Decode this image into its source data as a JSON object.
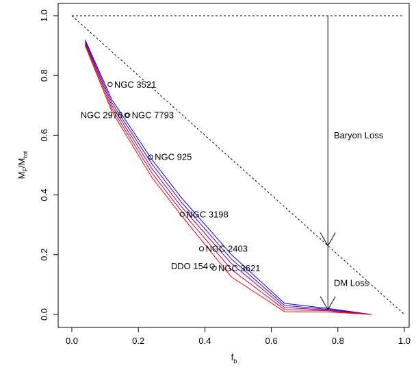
{
  "chart_data": {
    "type": "line",
    "xlabel": {
      "main": "f",
      "sub": "b"
    },
    "ylabel": {
      "main": "M",
      "sub1": "F",
      "sep": "/M",
      "sub2": "tot"
    },
    "xlim": [
      0.0,
      1.0
    ],
    "ylim": [
      0.0,
      1.0
    ],
    "x_ticks": [
      0.0,
      0.2,
      0.4,
      0.6,
      0.8,
      1.0
    ],
    "y_ticks": [
      0.0,
      0.2,
      0.4,
      0.6,
      0.8,
      1.0
    ],
    "x_tick_labels": [
      "0.0",
      "0.2",
      "0.4",
      "0.6",
      "0.8",
      "1.0"
    ],
    "y_tick_labels": [
      "0.0",
      "0.2",
      "0.4",
      "0.6",
      "0.8",
      "1.0"
    ],
    "grid": false,
    "reference_lines": [
      {
        "style": "dashed",
        "x": [
          0.0,
          1.0
        ],
        "y": [
          1.0,
          1.0
        ]
      },
      {
        "style": "dashed",
        "x": [
          0.0,
          1.0
        ],
        "y": [
          1.0,
          0.0
        ]
      }
    ],
    "series": [
      {
        "color": "#0000ff",
        "x": [
          0.04,
          0.12,
          0.24,
          0.33,
          0.48,
          0.64,
          0.77,
          0.9
        ],
        "y": [
          0.92,
          0.72,
          0.52,
          0.39,
          0.2,
          0.037,
          0.02,
          0.0
        ]
      },
      {
        "color": "#3f00c0",
        "x": [
          0.04,
          0.12,
          0.24,
          0.33,
          0.48,
          0.64,
          0.77,
          0.9
        ],
        "y": [
          0.915,
          0.71,
          0.505,
          0.375,
          0.185,
          0.03,
          0.017,
          0.0
        ]
      },
      {
        "color": "#7f0080",
        "x": [
          0.04,
          0.12,
          0.24,
          0.33,
          0.48,
          0.64,
          0.77,
          0.9
        ],
        "y": [
          0.91,
          0.7,
          0.49,
          0.36,
          0.17,
          0.023,
          0.015,
          0.0
        ]
      },
      {
        "color": "#bf0040",
        "x": [
          0.04,
          0.12,
          0.24,
          0.33,
          0.48,
          0.64,
          0.77,
          0.9
        ],
        "y": [
          0.905,
          0.69,
          0.475,
          0.345,
          0.15,
          0.016,
          0.012,
          0.0
        ]
      },
      {
        "color": "#ff0000",
        "x": [
          0.04,
          0.12,
          0.24,
          0.33,
          0.48,
          0.64,
          0.77,
          0.9
        ],
        "y": [
          0.9,
          0.68,
          0.46,
          0.33,
          0.125,
          0.009,
          0.008,
          0.0
        ]
      }
    ],
    "points": [
      {
        "label": "NGC 3521",
        "x": 0.115,
        "y": 0.77,
        "anchor": "right"
      },
      {
        "label": "NGC 2976",
        "x": 0.165,
        "y": 0.667,
        "anchor": "left"
      },
      {
        "label": "NGC 7793",
        "x": 0.168,
        "y": 0.667,
        "anchor": "right"
      },
      {
        "label": "NGC 925",
        "x": 0.237,
        "y": 0.527,
        "anchor": "right"
      },
      {
        "label": "NGC 3198",
        "x": 0.332,
        "y": 0.335,
        "anchor": "right"
      },
      {
        "label": "NGC 2403",
        "x": 0.39,
        "y": 0.22,
        "anchor": "right"
      },
      {
        "label": "DDO 154",
        "x": 0.422,
        "y": 0.162,
        "anchor": "left"
      },
      {
        "label": "NGC 3621",
        "x": 0.428,
        "y": 0.155,
        "anchor": "right"
      }
    ],
    "arrows": [
      {
        "x": 0.77,
        "y_from": 1.0,
        "y_to": 0.23
      },
      {
        "x": 0.77,
        "y_from": 0.23,
        "y_to": 0.016
      }
    ],
    "annotations": [
      {
        "text": "Baryon Loss",
        "x": 0.788,
        "y": 0.6
      },
      {
        "text": "DM Loss",
        "x": 0.788,
        "y": 0.105
      }
    ]
  }
}
